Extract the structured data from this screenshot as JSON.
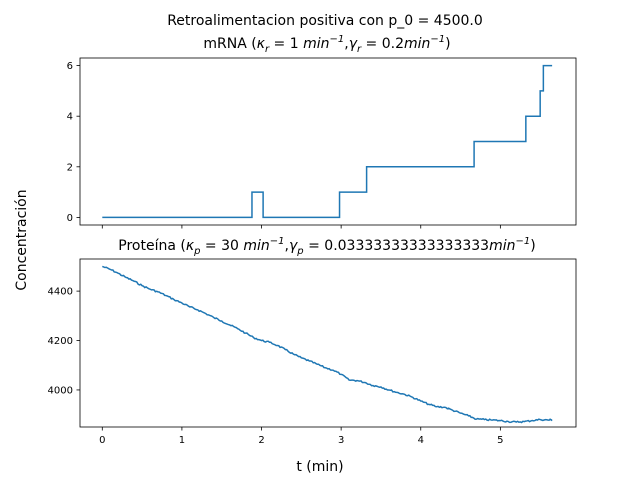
{
  "figure": {
    "suptitle": "Retroalimentacion positiva con p_0 = 4500.0",
    "ylabel": "Concentración",
    "xlabel": "t (min)"
  },
  "chart_data": [
    {
      "type": "line",
      "subplot": "top",
      "title": "mRNA (κ_r = 1 min⁻¹, γ_r = 0.2min⁻¹)",
      "title_parts": {
        "prefix": "mRNA (",
        "kappa": "κ",
        "kappa_sub": "r",
        "kappa_val": " = 1 ",
        "kappa_unit": "min",
        "kappa_exp": "−1",
        "sep": ",",
        "gamma": "γ",
        "gamma_sub": "r",
        "gamma_val": " = 0.2",
        "gamma_unit": "min",
        "gamma_exp": "−1",
        "suffix": ")"
      },
      "step": true,
      "color": "#1f77b4",
      "xlim": [
        -0.28,
        5.95
      ],
      "ylim": [
        -0.3,
        6.3
      ],
      "yticks": [
        0,
        2,
        4,
        6
      ],
      "ytick_labels": [
        "0",
        "2",
        "4",
        "6"
      ],
      "series": [
        {
          "x": [
            0.0,
            1.88,
            1.88,
            2.02,
            2.02,
            2.98,
            2.98,
            3.32,
            3.32,
            4.67,
            4.67,
            5.32,
            5.32,
            5.5,
            5.5,
            5.54,
            5.54,
            5.65
          ],
          "y": [
            0,
            0,
            1,
            1,
            0,
            0,
            1,
            1,
            2,
            2,
            3,
            3,
            4,
            4,
            5,
            5,
            6,
            6
          ]
        }
      ]
    },
    {
      "type": "line",
      "subplot": "bottom",
      "title": "Proteína (κ_p = 30 min⁻¹, γ_p = 0.03333333333333333min⁻¹)",
      "title_parts": {
        "prefix": "Proteína (",
        "kappa": "κ",
        "kappa_sub": "p",
        "kappa_val": " = 30 ",
        "kappa_unit": "min",
        "kappa_exp": "−1",
        "sep": ",",
        "gamma": "γ",
        "gamma_sub": "p",
        "gamma_val": " = 0.03333333333333333",
        "gamma_unit": "min",
        "gamma_exp": "−1",
        "suffix": ")"
      },
      "step": false,
      "color": "#1f77b4",
      "xlim": [
        -0.28,
        5.95
      ],
      "ylim": [
        3850,
        4530
      ],
      "xticks": [
        0,
        1,
        2,
        3,
        4,
        5
      ],
      "xtick_labels": [
        "0",
        "1",
        "2",
        "3",
        "4",
        "5"
      ],
      "yticks": [
        4000,
        4200,
        4400
      ],
      "ytick_labels": [
        "4000",
        "4200",
        "4400"
      ],
      "series": [
        {
          "x": [
            0.0,
            0.1,
            0.2,
            0.3,
            0.4,
            0.5,
            0.6,
            0.7,
            0.8,
            0.9,
            1.0,
            1.1,
            1.2,
            1.3,
            1.4,
            1.5,
            1.6,
            1.7,
            1.8,
            1.9,
            2.0,
            2.1,
            2.2,
            2.3,
            2.4,
            2.5,
            2.6,
            2.7,
            2.8,
            2.9,
            3.0,
            3.1,
            3.2,
            3.3,
            3.4,
            3.5,
            3.6,
            3.7,
            3.8,
            3.9,
            4.0,
            4.1,
            4.2,
            4.3,
            4.4,
            4.5,
            4.6,
            4.7,
            4.8,
            4.9,
            5.0,
            5.1,
            5.2,
            5.3,
            5.4,
            5.5,
            5.6,
            5.65
          ],
          "y": [
            4500,
            4488,
            4472,
            4455,
            4440,
            4422,
            4408,
            4397,
            4382,
            4366,
            4352,
            4336,
            4324,
            4309,
            4293,
            4279,
            4263,
            4248,
            4230,
            4212,
            4200,
            4193,
            4180,
            4163,
            4145,
            4130,
            4117,
            4104,
            4090,
            4080,
            4063,
            4040,
            4038,
            4030,
            4018,
            4012,
            4000,
            3990,
            3982,
            3970,
            3955,
            3942,
            3932,
            3930,
            3918,
            3906,
            3895,
            3882,
            3880,
            3878,
            3876,
            3872,
            3870,
            3872,
            3876,
            3880,
            3878,
            3880
          ]
        }
      ]
    }
  ]
}
